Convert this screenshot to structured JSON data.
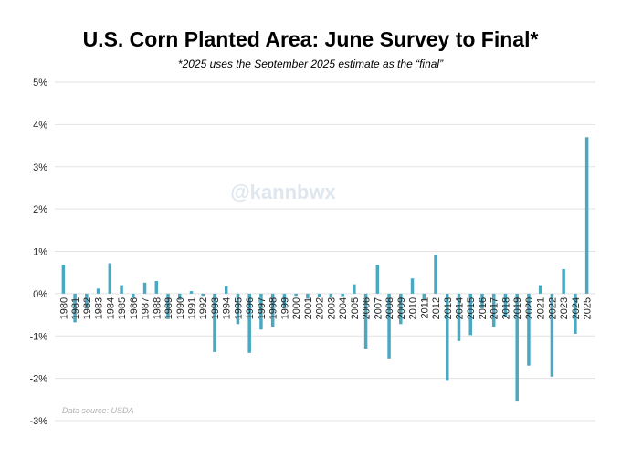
{
  "chart_data": {
    "type": "bar",
    "title": "U.S. Corn Planted Area: June Survey to Final*",
    "subtitle": "*2025 uses the September 2025 estimate as the “final”",
    "xlabel": "",
    "ylabel": "",
    "ylim": [
      -3,
      5
    ],
    "y_tick_values": [
      -3,
      -2,
      -1,
      0,
      1,
      2,
      3,
      4,
      5
    ],
    "y_tick_labels": [
      "-3%",
      "-2%",
      "-1%",
      "0%",
      "1%",
      "2%",
      "3%",
      "4%",
      "5%"
    ],
    "grid": true,
    "bar_color": "#4aa8c0",
    "categories": [
      "1980",
      "1981",
      "1982",
      "1983",
      "1984",
      "1985",
      "1986",
      "1987",
      "1988",
      "1989",
      "1990",
      "1991",
      "1992",
      "1993",
      "1994",
      "1995",
      "1996",
      "1997",
      "1998",
      "1999",
      "2000",
      "2001",
      "2002",
      "2003",
      "2004",
      "2005",
      "2006",
      "2007",
      "2008",
      "2009",
      "2010",
      "2011",
      "2012",
      "2013",
      "2014",
      "2015",
      "2016",
      "2017",
      "2018",
      "2019",
      "2020",
      "2021",
      "2022",
      "2023",
      "2024",
      "2025"
    ],
    "values": [
      0.68,
      -0.68,
      -0.35,
      0.12,
      0.72,
      0.2,
      -0.1,
      0.26,
      0.3,
      -0.6,
      -0.15,
      0.06,
      -0.05,
      -1.38,
      0.18,
      -0.72,
      -1.4,
      -0.85,
      -0.78,
      -0.35,
      -0.05,
      -0.12,
      -0.08,
      -0.1,
      -0.06,
      0.22,
      -1.3,
      0.68,
      -1.53,
      -0.72,
      0.36,
      -0.15,
      0.92,
      -2.06,
      -1.12,
      -0.98,
      -0.35,
      -0.78,
      -0.55,
      -2.55,
      -1.7,
      0.2,
      -1.96,
      0.58,
      -0.95,
      3.7
    ],
    "watermark": "@kannbwx",
    "source_note": "Data source: USDA"
  }
}
